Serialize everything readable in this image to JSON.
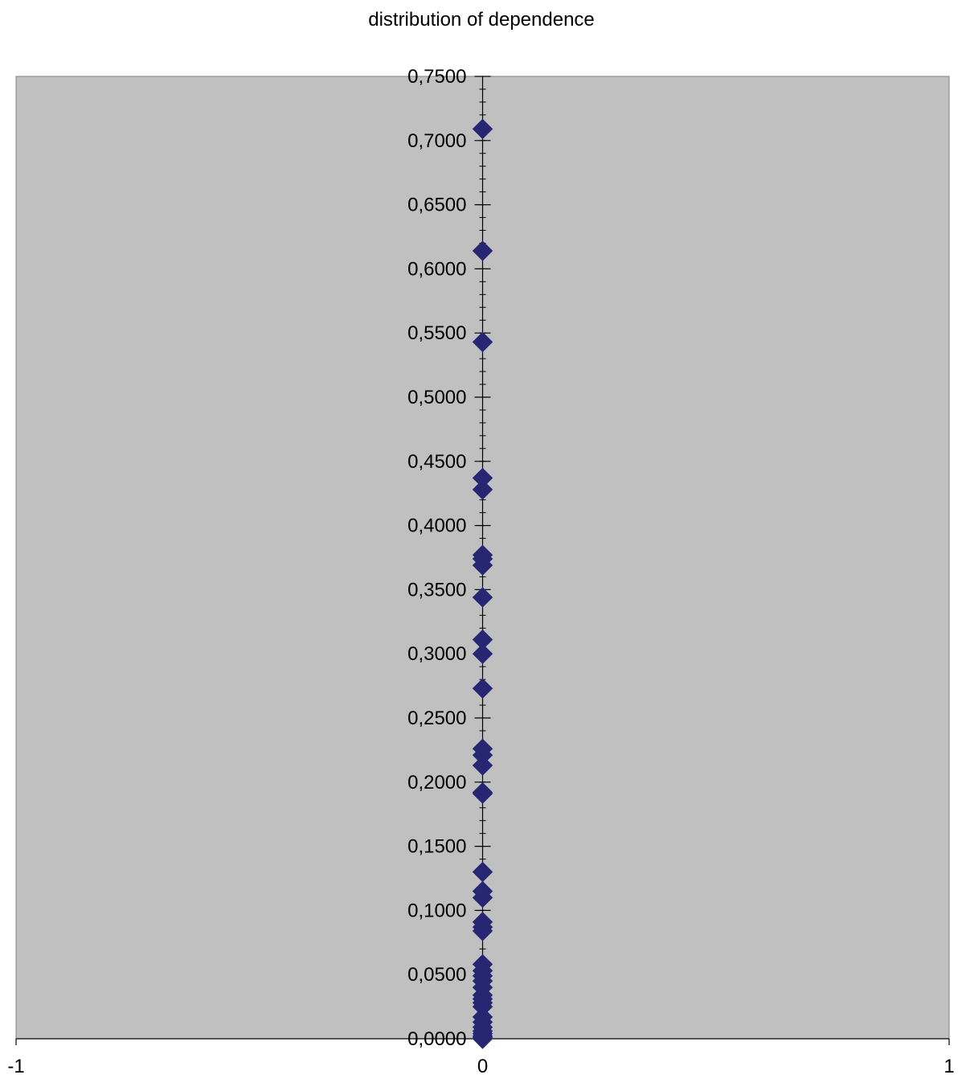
{
  "chart_data": {
    "type": "scatter",
    "title": "distribution of dependence",
    "xlabel": "",
    "ylabel": "",
    "xlim": [
      -1,
      1
    ],
    "ylim": [
      0,
      0.75
    ],
    "x_ticks": [
      "-1",
      "0",
      "1"
    ],
    "y_ticks": [
      "0,0000",
      "0,0500",
      "0,1000",
      "0,1500",
      "0,2000",
      "0,2500",
      "0,3000",
      "0,3500",
      "0,4000",
      "0,4500",
      "0,5000",
      "0,5500",
      "0,6000",
      "0,6500",
      "0,7000",
      "0,7500"
    ],
    "y_minor_step": 0.01,
    "grid": false,
    "legend": "none",
    "plot_background": "#C0C0C0",
    "marker": "diamond",
    "marker_color": "#262673",
    "series": [
      {
        "x": [
          0,
          0,
          0,
          0,
          0,
          0,
          0,
          0,
          0,
          0,
          0,
          0,
          0,
          0,
          0,
          0,
          0,
          0,
          0,
          0,
          0,
          0,
          0,
          0,
          0,
          0,
          0,
          0,
          0,
          0,
          0,
          0,
          0,
          0,
          0,
          0,
          0,
          0,
          0,
          0
        ],
        "y": [
          0.709,
          0.614,
          0.543,
          0.437,
          0.428,
          0.377,
          0.374,
          0.369,
          0.344,
          0.311,
          0.3,
          0.273,
          0.226,
          0.221,
          0.213,
          0.192,
          0.191,
          0.13,
          0.115,
          0.11,
          0.091,
          0.087,
          0.084,
          0.058,
          0.053,
          0.049,
          0.045,
          0.04,
          0.034,
          0.031,
          0.028,
          0.025,
          0.017,
          0.013,
          0.009,
          0.006,
          0.004,
          0.002,
          0.001,
          0.0
        ]
      }
    ]
  }
}
